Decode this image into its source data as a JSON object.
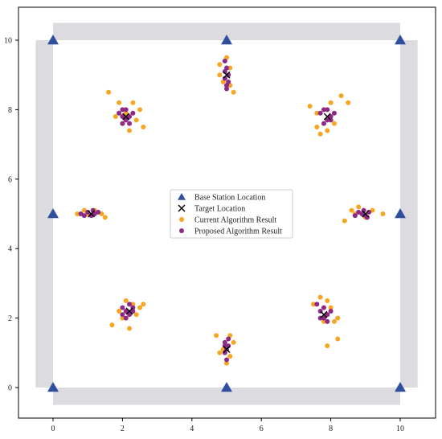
{
  "chart_data": {
    "type": "scatter",
    "xlim": [
      -0.5,
      10.5
    ],
    "ylim": [
      -0.5,
      10.5
    ],
    "xticks": [
      "0",
      "2",
      "4",
      "6",
      "8",
      "10"
    ],
    "yticks": [
      "0",
      "2",
      "4",
      "6",
      "8",
      "10"
    ],
    "grid": false,
    "legend_position": "center",
    "walls": [
      {
        "x0": -0.5,
        "x1": 0,
        "y0": 0,
        "y1": 10
      },
      {
        "x0": 10,
        "x1": 10.5,
        "y0": 0,
        "y1": 10
      },
      {
        "x0": 0,
        "x1": 10,
        "y0": 10,
        "y1": 10.5
      },
      {
        "x0": 0,
        "x1": 10,
        "y0": -0.5,
        "y1": 0
      }
    ],
    "series": [
      {
        "name": "Base Station Location",
        "marker": "triangle",
        "color": "#2f4f9e",
        "points": [
          [
            0,
            10
          ],
          [
            5,
            10
          ],
          [
            10,
            10
          ],
          [
            0,
            5
          ],
          [
            10,
            5
          ],
          [
            0,
            0
          ],
          [
            5,
            0
          ],
          [
            10,
            0
          ]
        ]
      },
      {
        "name": "Target Location",
        "marker": "x",
        "color": "#000000",
        "points": [
          [
            2.1,
            7.8
          ],
          [
            5,
            9
          ],
          [
            7.9,
            7.8
          ],
          [
            1.1,
            5
          ],
          [
            9,
            5
          ],
          [
            2.2,
            2.2
          ],
          [
            5,
            1.1
          ],
          [
            7.8,
            2.1
          ]
        ]
      },
      {
        "name": "Current Algorithm Result",
        "marker": "circle",
        "color": "#f5a623",
        "points": [
          [
            1.6,
            8.5
          ],
          [
            1.9,
            8.2
          ],
          [
            2.3,
            8.2
          ],
          [
            2.5,
            8.0
          ],
          [
            1.8,
            7.8
          ],
          [
            2.0,
            7.6
          ],
          [
            2.4,
            7.7
          ],
          [
            2.6,
            7.5
          ],
          [
            2.2,
            7.4
          ],
          [
            2.1,
            7.9
          ],
          [
            4.8,
            9.3
          ],
          [
            5.0,
            9.5
          ],
          [
            5.1,
            8.7
          ],
          [
            4.9,
            8.8
          ],
          [
            5.2,
            8.5
          ],
          [
            4.8,
            9.0
          ],
          [
            5.1,
            9.2
          ],
          [
            7.4,
            8.1
          ],
          [
            7.6,
            7.5
          ],
          [
            7.7,
            7.3
          ],
          [
            8.0,
            8.2
          ],
          [
            8.3,
            8.4
          ],
          [
            8.5,
            8.2
          ],
          [
            7.9,
            7.4
          ],
          [
            7.6,
            7.9
          ],
          [
            8.1,
            7.6
          ],
          [
            0.7,
            5.0
          ],
          [
            0.9,
            5.1
          ],
          [
            1.2,
            5.1
          ],
          [
            1.4,
            5.0
          ],
          [
            1.5,
            4.9
          ],
          [
            1.0,
            5.0
          ],
          [
            8.4,
            4.8
          ],
          [
            8.6,
            5.1
          ],
          [
            8.8,
            5.2
          ],
          [
            9.2,
            5.1
          ],
          [
            9.5,
            5.0
          ],
          [
            8.7,
            5.0
          ],
          [
            9.0,
            4.9
          ],
          [
            1.7,
            1.8
          ],
          [
            1.9,
            2.2
          ],
          [
            2.1,
            2.5
          ],
          [
            2.3,
            2.4
          ],
          [
            2.5,
            2.3
          ],
          [
            2.6,
            2.4
          ],
          [
            2.2,
            1.7
          ],
          [
            2.0,
            2.0
          ],
          [
            2.4,
            2.1
          ],
          [
            4.7,
            1.5
          ],
          [
            4.8,
            1.0
          ],
          [
            5.1,
            1.5
          ],
          [
            5.2,
            1.3
          ],
          [
            5.0,
            0.7
          ],
          [
            4.9,
            1.1
          ],
          [
            5.1,
            0.9
          ],
          [
            7.5,
            2.4
          ],
          [
            7.7,
            2.6
          ],
          [
            7.9,
            2.5
          ],
          [
            8.0,
            2.3
          ],
          [
            8.1,
            1.9
          ],
          [
            8.2,
            2.0
          ],
          [
            7.8,
            1.9
          ],
          [
            7.9,
            1.2
          ],
          [
            8.2,
            1.4
          ]
        ]
      },
      {
        "name": "Proposed Algorithm Result",
        "marker": "circle",
        "color": "#8e2a86",
        "points": [
          [
            1.9,
            7.9
          ],
          [
            2.0,
            8.0
          ],
          [
            2.1,
            7.7
          ],
          [
            2.2,
            7.8
          ],
          [
            2.0,
            7.6
          ],
          [
            2.3,
            7.9
          ],
          [
            2.2,
            7.6
          ],
          [
            2.1,
            8.0
          ],
          [
            2.0,
            7.8
          ],
          [
            4.95,
            9.4
          ],
          [
            5.0,
            9.2
          ],
          [
            5.05,
            9.0
          ],
          [
            4.95,
            8.9
          ],
          [
            5.0,
            8.7
          ],
          [
            5.05,
            8.8
          ],
          [
            4.95,
            9.1
          ],
          [
            5.0,
            8.6
          ],
          [
            7.7,
            7.9
          ],
          [
            7.8,
            8.0
          ],
          [
            7.9,
            7.7
          ],
          [
            8.0,
            7.8
          ],
          [
            7.8,
            7.6
          ],
          [
            8.1,
            7.9
          ],
          [
            7.9,
            8.0
          ],
          [
            8.0,
            7.7
          ],
          [
            0.8,
            5.0
          ],
          [
            1.0,
            5.05
          ],
          [
            1.1,
            4.95
          ],
          [
            1.2,
            5.0
          ],
          [
            1.3,
            5.05
          ],
          [
            0.9,
            4.95
          ],
          [
            1.15,
            5.1
          ],
          [
            8.7,
            4.95
          ],
          [
            8.8,
            5.05
          ],
          [
            8.9,
            5.0
          ],
          [
            9.0,
            4.95
          ],
          [
            9.1,
            5.05
          ],
          [
            8.95,
            5.1
          ],
          [
            9.05,
            4.9
          ],
          [
            2.0,
            2.3
          ],
          [
            2.1,
            2.2
          ],
          [
            2.2,
            2.1
          ],
          [
            2.3,
            2.3
          ],
          [
            2.2,
            2.4
          ],
          [
            2.1,
            2.0
          ],
          [
            2.3,
            2.2
          ],
          [
            2.0,
            2.1
          ],
          [
            4.95,
            1.3
          ],
          [
            5.0,
            1.1
          ],
          [
            5.05,
            1.2
          ],
          [
            4.95,
            1.0
          ],
          [
            5.0,
            0.8
          ],
          [
            5.05,
            1.4
          ],
          [
            4.95,
            1.2
          ],
          [
            7.6,
            2.4
          ],
          [
            7.7,
            2.2
          ],
          [
            7.8,
            2.3
          ],
          [
            7.9,
            2.1
          ],
          [
            7.8,
            2.0
          ],
          [
            8.0,
            2.2
          ],
          [
            7.9,
            1.9
          ],
          [
            7.7,
            2.0
          ]
        ]
      }
    ]
  }
}
